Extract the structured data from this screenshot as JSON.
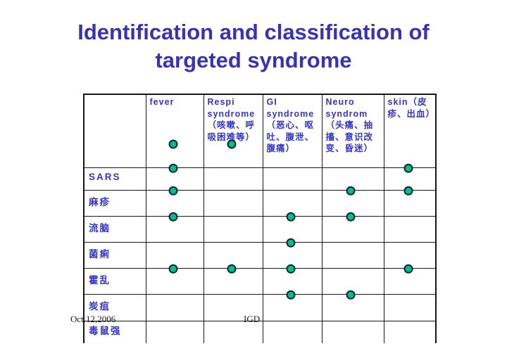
{
  "slide": {
    "title_lines": [
      "Identification and classification of",
      "targeted syndrome"
    ],
    "footer": {
      "date": "Oct.12,2006",
      "center": "IGD"
    }
  },
  "colors": {
    "title_text": "#3733b2",
    "table_text": "#3333cc",
    "table_border": "#161616",
    "dot_fill": "#00be8c",
    "dot_border": "#0e2436",
    "background": "#ffffff"
  },
  "table": {
    "columns": [
      "",
      "fever",
      "Respi syndrome（咳嗽、呼吸困难等）",
      "GI syndrome（恶心、呕吐、腹泄、腹痛）",
      "Neuro syndrom（头痛、抽搐、意识改变、昏迷）",
      "skin（皮疹、出血）"
    ],
    "header_dots": [
      1,
      2
    ],
    "rows": [
      {
        "label": "SARS",
        "dots": [
          1,
          5
        ]
      },
      {
        "label": "麻疹",
        "dots": [
          1,
          4,
          5
        ]
      },
      {
        "label": "流脑",
        "dots": [
          1,
          3,
          4
        ]
      },
      {
        "label": "菌痢",
        "dots": [
          3
        ]
      },
      {
        "label": "霍乱",
        "dots": [
          1,
          2,
          3,
          5
        ]
      },
      {
        "label": "炭疽",
        "dots": [
          3,
          4
        ]
      },
      {
        "label": "毒鼠强",
        "dots": []
      }
    ]
  }
}
